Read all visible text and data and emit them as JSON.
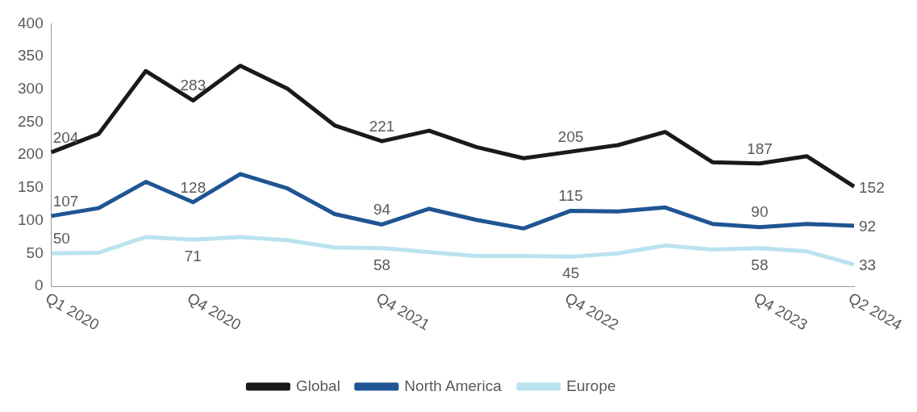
{
  "chart_data": {
    "type": "line",
    "categories": [
      "Q1 2020",
      null,
      null,
      "Q4 2020",
      null,
      null,
      null,
      "Q4 2021",
      null,
      null,
      null,
      "Q4 2022",
      null,
      null,
      null,
      "Q4 2023",
      null,
      "Q2 2024"
    ],
    "series": [
      {
        "name": "Global",
        "color": "#1a1a1a",
        "values": [
          204,
          232,
          328,
          283,
          336,
          301,
          245,
          221,
          237,
          212,
          195,
          205,
          215,
          235,
          189,
          187,
          198,
          152
        ],
        "value_labels": [
          "204",
          null,
          null,
          "283",
          null,
          null,
          null,
          "221",
          null,
          null,
          null,
          "205",
          null,
          null,
          null,
          "187",
          null,
          "152"
        ]
      },
      {
        "name": "North America",
        "color": "#1f5592",
        "values": [
          107,
          119,
          159,
          128,
          171,
          149,
          110,
          94,
          118,
          101,
          88,
          115,
          114,
          120,
          95,
          90,
          95,
          92
        ],
        "value_labels": [
          "107",
          null,
          null,
          "128",
          null,
          null,
          null,
          "94",
          null,
          null,
          null,
          "115",
          null,
          null,
          null,
          "90",
          null,
          "92"
        ]
      },
      {
        "name": "Europe",
        "color": "#b9e3ef",
        "values": [
          50,
          51,
          75,
          71,
          75,
          70,
          59,
          58,
          52,
          46,
          46,
          45,
          50,
          62,
          56,
          58,
          53,
          33
        ],
        "value_labels": [
          "50",
          null,
          null,
          "71",
          null,
          null,
          null,
          "58",
          null,
          null,
          null,
          "45",
          null,
          null,
          null,
          "58",
          null,
          "33"
        ]
      }
    ],
    "ylim": [
      0,
      400
    ],
    "yticks": [
      0,
      50,
      100,
      150,
      200,
      250,
      300,
      350,
      400
    ],
    "grid": false,
    "legend": "bottom",
    "marker": "none",
    "line_style": "solid"
  }
}
